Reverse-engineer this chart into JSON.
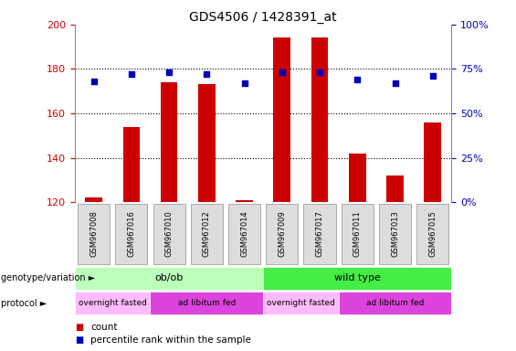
{
  "title": "GDS4506 / 1428391_at",
  "samples": [
    "GSM967008",
    "GSM967016",
    "GSM967010",
    "GSM967012",
    "GSM967014",
    "GSM967009",
    "GSM967017",
    "GSM967011",
    "GSM967013",
    "GSM967015"
  ],
  "counts": [
    122,
    154,
    174,
    173,
    121,
    194,
    194,
    142,
    132,
    156
  ],
  "percentiles": [
    68,
    72,
    73,
    72,
    67,
    73,
    73,
    69,
    67,
    71
  ],
  "ylim_left": [
    120,
    200
  ],
  "ylim_right": [
    0,
    100
  ],
  "y_ticks_left": [
    120,
    140,
    160,
    180,
    200
  ],
  "y_ticks_right": [
    0,
    25,
    50,
    75,
    100
  ],
  "bar_color": "#cc0000",
  "dot_color": "#0000bb",
  "genotype_groups": [
    {
      "label": "ob/ob",
      "start": 0,
      "end": 5,
      "color": "#bbffbb"
    },
    {
      "label": "wild type",
      "start": 5,
      "end": 10,
      "color": "#44ee44"
    }
  ],
  "protocol_groups": [
    {
      "label": "overnight fasted",
      "start": 0,
      "end": 2,
      "color": "#ffbbff"
    },
    {
      "label": "ad libitum fed",
      "start": 2,
      "end": 5,
      "color": "#dd44dd"
    },
    {
      "label": "overnight fasted",
      "start": 5,
      "end": 7,
      "color": "#ffbbff"
    },
    {
      "label": "ad libitum fed",
      "start": 7,
      "end": 10,
      "color": "#dd44dd"
    }
  ],
  "tick_color_left": "#cc0000",
  "tick_color_right": "#0000bb",
  "sample_box_color": "#dddddd",
  "sample_box_edge": "#aaaaaa"
}
